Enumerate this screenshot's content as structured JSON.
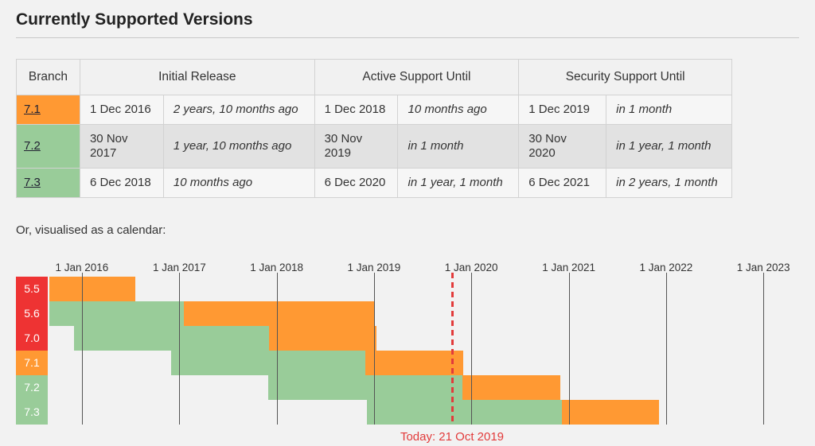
{
  "page": {
    "title": "Currently Supported Versions",
    "calendar_intro": "Or, visualised as a calendar:"
  },
  "colors": {
    "supported": "#99cc99",
    "security": "#ff9933",
    "eol": "#ee3333",
    "today": "#e23b3b"
  },
  "table": {
    "headers": [
      "Branch",
      "Initial Release",
      "Active Support Until",
      "Security Support Until"
    ],
    "rows": [
      {
        "branch": "7.1",
        "state": "security",
        "initial_release": {
          "date": "1 Dec 2016",
          "relative": "2 years, 10 months ago"
        },
        "active_until": {
          "date": "1 Dec 2018",
          "relative": "10 months ago"
        },
        "security_until": {
          "date": "1 Dec 2019",
          "relative": "in 1 month"
        }
      },
      {
        "branch": "7.2",
        "state": "supported",
        "initial_release": {
          "date": "30 Nov 2017",
          "relative": "1 year, 10 months ago"
        },
        "active_until": {
          "date": "30 Nov 2019",
          "relative": "in 1 month"
        },
        "security_until": {
          "date": "30 Nov 2020",
          "relative": "in 1 year, 1 month"
        }
      },
      {
        "branch": "7.3",
        "state": "supported",
        "initial_release": {
          "date": "6 Dec 2018",
          "relative": "10 months ago"
        },
        "active_until": {
          "date": "6 Dec 2020",
          "relative": "in 1 year, 1 month"
        },
        "security_until": {
          "date": "6 Dec 2021",
          "relative": "in 2 years, 1 month"
        }
      }
    ]
  },
  "chart_data": {
    "type": "gantt",
    "timeline": {
      "start": "2015-09-01",
      "end": "2023-05-15"
    },
    "gridlines": [
      {
        "label": "1 Jan 2016",
        "date": "2016-01-01"
      },
      {
        "label": "1 Jan 2017",
        "date": "2017-01-01"
      },
      {
        "label": "1 Jan 2018",
        "date": "2018-01-01"
      },
      {
        "label": "1 Jan 2019",
        "date": "2019-01-01"
      },
      {
        "label": "1 Jan 2020",
        "date": "2020-01-01"
      },
      {
        "label": "1 Jan 2021",
        "date": "2021-01-01"
      },
      {
        "label": "1 Jan 2022",
        "date": "2022-01-01"
      },
      {
        "label": "1 Jan 2023",
        "date": "2023-01-01"
      }
    ],
    "today": {
      "date": "2019-10-21",
      "label": "Today: 21 Oct 2019"
    },
    "rows": [
      {
        "branch": "5.5",
        "label_state": "eol",
        "phases": [
          {
            "state": "security",
            "start": "2015-09-01",
            "end": "2016-07-21"
          }
        ]
      },
      {
        "branch": "5.6",
        "label_state": "eol",
        "phases": [
          {
            "state": "supported",
            "start": "2015-09-01",
            "end": "2017-01-19"
          },
          {
            "state": "security",
            "start": "2017-01-19",
            "end": "2018-12-31"
          }
        ]
      },
      {
        "branch": "7.0",
        "label_state": "eol",
        "phases": [
          {
            "state": "supported",
            "start": "2015-12-03",
            "end": "2017-12-03"
          },
          {
            "state": "security",
            "start": "2017-12-03",
            "end": "2019-01-10"
          }
        ]
      },
      {
        "branch": "7.1",
        "label_state": "security",
        "phases": [
          {
            "state": "supported",
            "start": "2016-12-01",
            "end": "2018-12-01"
          },
          {
            "state": "security",
            "start": "2018-12-01",
            "end": "2019-12-01"
          }
        ]
      },
      {
        "branch": "7.2",
        "label_state": "supported",
        "phases": [
          {
            "state": "supported",
            "start": "2017-11-30",
            "end": "2019-11-30"
          },
          {
            "state": "security",
            "start": "2019-11-30",
            "end": "2020-11-30"
          }
        ]
      },
      {
        "branch": "7.3",
        "label_state": "supported",
        "phases": [
          {
            "state": "supported",
            "start": "2018-12-06",
            "end": "2020-12-06"
          },
          {
            "state": "security",
            "start": "2020-12-06",
            "end": "2021-12-06"
          }
        ]
      }
    ]
  }
}
